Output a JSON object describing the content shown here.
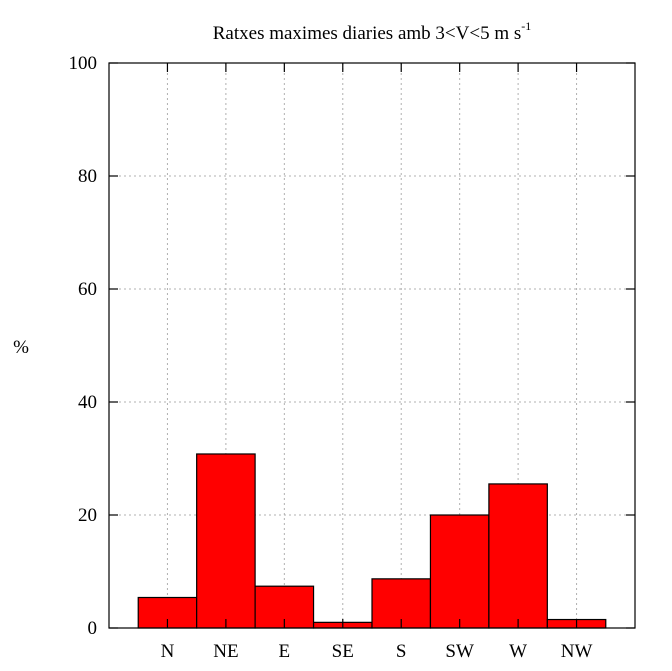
{
  "chart_data": {
    "type": "bar",
    "title": "Ratxes maximes diaries amb 3<V<5 m s",
    "title_superscript": "-1",
    "xlabel": "",
    "ylabel": "%",
    "categories": [
      "N",
      "NE",
      "E",
      "SE",
      "S",
      "SW",
      "W",
      "NW"
    ],
    "values": [
      5.4,
      30.8,
      7.4,
      1.0,
      8.7,
      20.0,
      25.5,
      1.5
    ],
    "ylim": [
      0,
      100
    ],
    "yticks": [
      0,
      20,
      40,
      60,
      80,
      100
    ],
    "grid": true,
    "bar_color": "#ff0000"
  }
}
